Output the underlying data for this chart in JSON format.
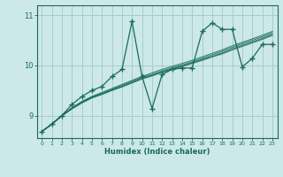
{
  "bg_color": "#cce8e8",
  "line_color": "#1a6b5a",
  "grid_color": "#a8cccc",
  "xlabel": "Humidex (Indice chaleur)",
  "xlim": [
    -0.5,
    23.5
  ],
  "ylim": [
    8.55,
    11.2
  ],
  "yticks": [
    9,
    10,
    11
  ],
  "xticks": [
    0,
    1,
    2,
    3,
    4,
    5,
    6,
    7,
    8,
    9,
    10,
    11,
    12,
    13,
    14,
    15,
    16,
    17,
    18,
    19,
    20,
    21,
    22,
    23
  ],
  "smooth_lines": [
    {
      "x": [
        0,
        1,
        2,
        3,
        4,
        5,
        6,
        7,
        8,
        9,
        10,
        11,
        12,
        13,
        14,
        15,
        16,
        17,
        18,
        19,
        20,
        21,
        22,
        23
      ],
      "y": [
        8.68,
        8.83,
        9.0,
        9.15,
        9.28,
        9.38,
        9.46,
        9.54,
        9.62,
        9.7,
        9.78,
        9.85,
        9.92,
        9.98,
        10.04,
        10.1,
        10.17,
        10.24,
        10.31,
        10.39,
        10.46,
        10.53,
        10.6,
        10.68
      ]
    },
    {
      "x": [
        0,
        1,
        2,
        3,
        4,
        5,
        6,
        7,
        8,
        9,
        10,
        11,
        12,
        13,
        14,
        15,
        16,
        17,
        18,
        19,
        20,
        21,
        22,
        23
      ],
      "y": [
        8.68,
        8.83,
        9.0,
        9.15,
        9.27,
        9.37,
        9.44,
        9.52,
        9.6,
        9.68,
        9.76,
        9.82,
        9.89,
        9.95,
        10.01,
        10.07,
        10.14,
        10.21,
        10.28,
        10.36,
        10.43,
        10.5,
        10.57,
        10.65
      ]
    },
    {
      "x": [
        0,
        1,
        2,
        3,
        4,
        5,
        6,
        7,
        8,
        9,
        10,
        11,
        12,
        13,
        14,
        15,
        16,
        17,
        18,
        19,
        20,
        21,
        22,
        23
      ],
      "y": [
        8.68,
        8.83,
        9.0,
        9.14,
        9.26,
        9.36,
        9.43,
        9.51,
        9.58,
        9.66,
        9.74,
        9.8,
        9.87,
        9.93,
        9.99,
        10.05,
        10.12,
        10.18,
        10.25,
        10.33,
        10.4,
        10.47,
        10.54,
        10.62
      ]
    },
    {
      "x": [
        0,
        1,
        2,
        3,
        4,
        5,
        6,
        7,
        8,
        9,
        10,
        11,
        12,
        13,
        14,
        15,
        16,
        17,
        18,
        19,
        20,
        21,
        22,
        23
      ],
      "y": [
        8.68,
        8.82,
        8.99,
        9.13,
        9.25,
        9.35,
        9.42,
        9.5,
        9.57,
        9.65,
        9.73,
        9.79,
        9.86,
        9.92,
        9.98,
        10.04,
        10.1,
        10.17,
        10.23,
        10.31,
        10.38,
        10.45,
        10.52,
        10.6
      ]
    }
  ],
  "spiky_line": {
    "x": [
      0,
      1,
      2,
      3,
      4,
      5,
      6,
      7,
      8,
      9,
      10,
      11,
      12,
      13,
      14,
      15,
      16,
      17,
      18,
      19,
      20,
      21,
      22,
      23
    ],
    "y": [
      8.68,
      8.83,
      9.0,
      9.22,
      9.38,
      9.5,
      9.58,
      9.78,
      9.92,
      10.88,
      9.78,
      9.14,
      9.82,
      9.92,
      9.95,
      9.95,
      10.68,
      10.85,
      10.72,
      10.72,
      9.97,
      10.14,
      10.42,
      10.42
    ]
  }
}
